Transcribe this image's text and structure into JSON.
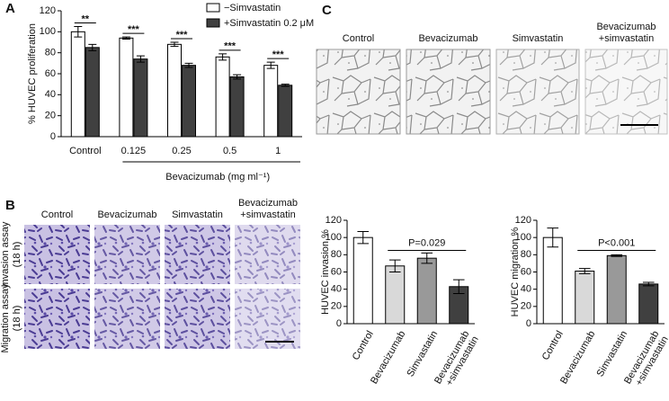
{
  "panel_labels": [
    "A",
    "B",
    "C"
  ],
  "panel_b": {
    "columns": [
      "Control",
      "Bevacizumab",
      "Simvastatin",
      "Bevacizumab\n+simvastatin"
    ],
    "rows": [
      "Invasion assay\n(18 h)",
      "Migration assay\n(18 h)"
    ]
  },
  "panel_c": {
    "columns": [
      "Control",
      "Bevacizumab",
      "Simvastatin",
      "Bevacizumab\n+simvastatin"
    ]
  },
  "chart_data": [
    {
      "type": "bar",
      "categories": [
        "Control",
        "0.125",
        "0.25",
        "0.5",
        "1"
      ],
      "series": [
        {
          "name": "−Simvastatin",
          "color": "#ffffff",
          "values": [
            100,
            94,
            88,
            76,
            68
          ],
          "errors": [
            5,
            1,
            2,
            3,
            3
          ]
        },
        {
          "name": "+Simvastatin 0.2 μM",
          "color": "#404040",
          "values": [
            85,
            74,
            68,
            57,
            49
          ],
          "errors": [
            3,
            3,
            2,
            2,
            1
          ]
        }
      ],
      "ylabel": "% HUVEC proliferation",
      "xlabel": "Bevacizumab (mg ml⁻¹)",
      "ylim": [
        0,
        120
      ],
      "yticks": [
        0,
        20,
        40,
        60,
        80,
        100,
        120
      ],
      "annotations": [
        "**",
        "***",
        "***",
        "***",
        "***"
      ]
    },
    {
      "type": "bar",
      "categories": [
        "Control",
        "Bevacizumab",
        "Simvastatin",
        "Bevacizumab\n+simvastatin"
      ],
      "values": [
        100,
        67,
        76,
        43
      ],
      "errors": [
        7,
        7,
        6,
        8
      ],
      "colors": [
        "#ffffff",
        "#d9d9d9",
        "#999999",
        "#404040"
      ],
      "ylabel": "HUVEC invasion %",
      "ylim": [
        0,
        120
      ],
      "yticks": [
        0,
        20,
        40,
        60,
        80,
        100,
        120
      ],
      "annotation": "P=0.029"
    },
    {
      "type": "bar",
      "categories": [
        "Control",
        "Bevacizumab",
        "Simvastatin",
        "Bevacizumab\n+simvastatin"
      ],
      "values": [
        100,
        61,
        79,
        46
      ],
      "errors": [
        11,
        3,
        1,
        2
      ],
      "colors": [
        "#ffffff",
        "#d9d9d9",
        "#999999",
        "#404040"
      ],
      "ylabel": "HUVEC migration %",
      "ylim": [
        0,
        120
      ],
      "yticks": [
        0,
        20,
        40,
        60,
        80,
        100,
        120
      ],
      "annotation": "P<0.001"
    }
  ]
}
